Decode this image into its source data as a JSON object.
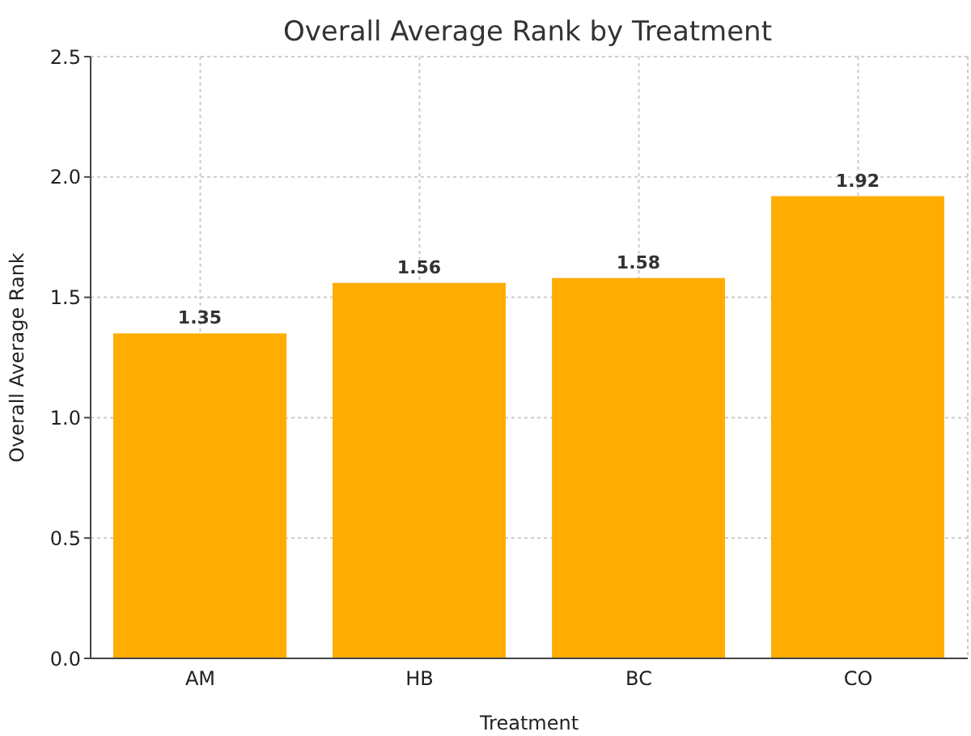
{
  "chart_data": {
    "type": "bar",
    "title": "Overall Average Rank by Treatment",
    "xlabel": "Treatment",
    "ylabel": "Overall Average Rank",
    "categories": [
      "AM",
      "HB",
      "BC",
      "CO"
    ],
    "values": [
      1.35,
      1.56,
      1.58,
      1.92
    ],
    "color": "#ffad00",
    "ylim": [
      0,
      2.5
    ],
    "yticks": [
      {
        "value": 0,
        "label": "0.0"
      },
      {
        "value": 0.5,
        "label": "0.5"
      },
      {
        "value": 1,
        "label": "1.0"
      },
      {
        "value": 1.5,
        "label": "1.5"
      },
      {
        "value": 2,
        "label": "2.0"
      },
      {
        "value": 2.5,
        "label": "2.5"
      }
    ],
    "grid": true,
    "data_labels": true
  }
}
